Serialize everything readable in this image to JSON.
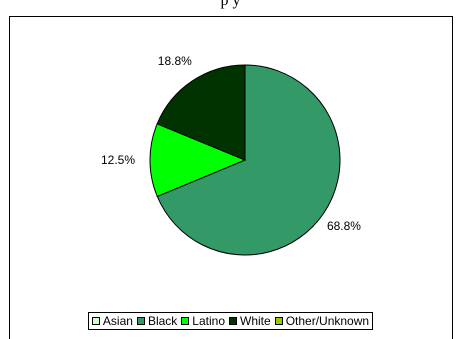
{
  "chart_data": {
    "type": "pie",
    "title": "",
    "title_fragment": "p            y",
    "categories": [
      "Asian",
      "Black",
      "Latino",
      "White",
      "Other/Unknown"
    ],
    "values": [
      0,
      68.8,
      12.5,
      18.8,
      0
    ],
    "labels": [
      "",
      "68.8%",
      "12.5%",
      "18.8%",
      ""
    ],
    "colors": [
      "#ccffcc",
      "#339966",
      "#00ff00",
      "#003300",
      "#99cc00"
    ],
    "start_angle_deg": 0,
    "direction": "clockwise",
    "legend_position": "bottom"
  }
}
